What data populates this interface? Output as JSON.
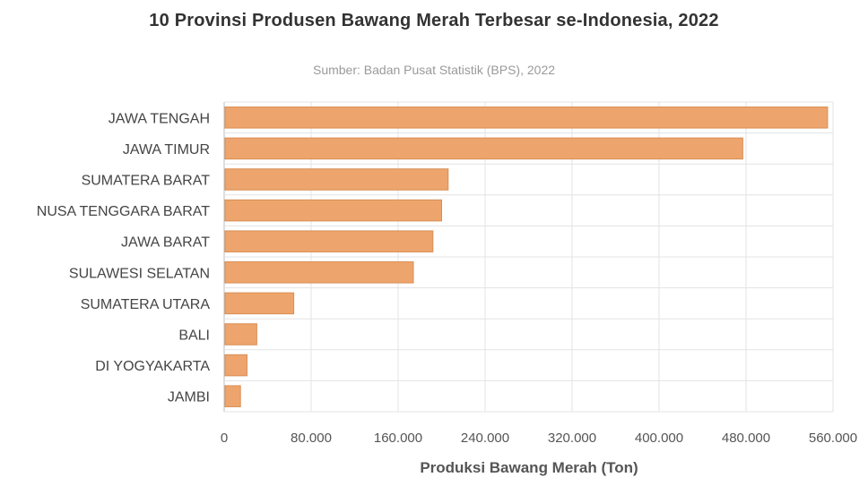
{
  "chart_data": {
    "type": "bar",
    "orientation": "horizontal",
    "title": "10 Provinsi Produsen Bawang Merah Terbesar se-Indonesia, 2022",
    "subtitle": "Sumber: Badan Pusat Statistik (BPS), 2022",
    "xlabel": "Produksi Bawang Merah (Ton)",
    "ylabel": "",
    "categories": [
      "JAWA TENGAH",
      "JAWA TIMUR",
      "SUMATERA BARAT",
      "NUSA TENGGARA BARAT",
      "JAWA BARAT",
      "SULAWESI SELATAN",
      "SUMATERA UTARA",
      "BALI",
      "DI YOGYAKARTA",
      "JAMBI"
    ],
    "values": [
      555000,
      477000,
      206000,
      200000,
      192000,
      174000,
      64000,
      30000,
      21000,
      15000
    ],
    "xlim": [
      0,
      560000
    ],
    "ticks": [
      0,
      80000,
      160000,
      240000,
      320000,
      400000,
      480000,
      560000
    ],
    "tick_labels": [
      "0",
      "80.000",
      "160.000",
      "240.000",
      "320.000",
      "400.000",
      "480.000",
      "560.000"
    ],
    "grid": true,
    "legend": "none",
    "colors": {
      "bar": "#eda56d",
      "bar_stroke": "#d98e55",
      "grid": "#e3e3e3",
      "axis": "#bdbdbd"
    }
  }
}
